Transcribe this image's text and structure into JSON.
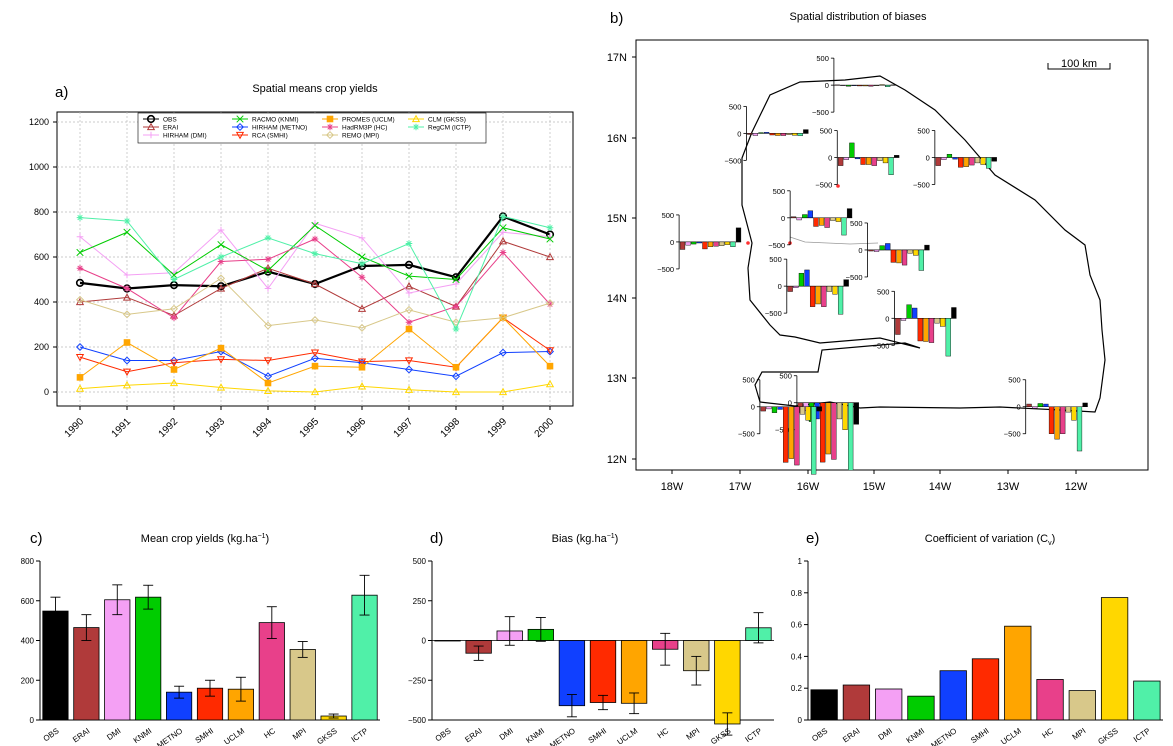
{
  "chart_data": [
    {
      "panel_label": "a)",
      "type": "line",
      "title": "Spatial means crop yields",
      "x": [
        1990,
        1991,
        1992,
        1993,
        1994,
        1995,
        1996,
        1997,
        1998,
        1999,
        2000
      ],
      "ylim": [
        0,
        1200
      ],
      "yticks": [
        0,
        200,
        400,
        600,
        800,
        1000,
        1200
      ],
      "grid": true,
      "legend": "top",
      "series": [
        {
          "name": "OBS",
          "color": "#000000",
          "marker": "o",
          "values": [
            485,
            460,
            475,
            470,
            535,
            480,
            560,
            565,
            510,
            780,
            700
          ]
        },
        {
          "name": "ERAI",
          "color": "#b03a3a",
          "marker": "^",
          "values": [
            400,
            420,
            340,
            460,
            550,
            480,
            370,
            470,
            380,
            670,
            600
          ]
        },
        {
          "name": "HIRHAM (DMI)",
          "color": "#f4a0f4",
          "marker": "+",
          "values": [
            690,
            520,
            530,
            720,
            460,
            750,
            685,
            440,
            480,
            710,
            690
          ]
        },
        {
          "name": "RACMO (KNMI)",
          "color": "#00cc00",
          "marker": "x",
          "values": [
            620,
            710,
            520,
            655,
            540,
            740,
            600,
            515,
            500,
            730,
            680
          ]
        },
        {
          "name": "HIRHAM (METNO)",
          "color": "#1040ff",
          "marker": "d",
          "values": [
            200,
            140,
            140,
            180,
            70,
            150,
            130,
            100,
            70,
            175,
            180
          ]
        },
        {
          "name": "RCA (SMHI)",
          "color": "#ff2a00",
          "marker": "v",
          "values": [
            155,
            90,
            130,
            145,
            140,
            175,
            135,
            140,
            110,
            330,
            185
          ]
        },
        {
          "name": "PROMES (UCLM)",
          "color": "#ffa500",
          "marker": "s",
          "values": [
            65,
            220,
            100,
            195,
            40,
            115,
            110,
            280,
            110,
            330,
            115
          ]
        },
        {
          "name": "HadRM3P (HC)",
          "color": "#e8408a",
          "marker": "*",
          "values": [
            550,
            460,
            330,
            580,
            590,
            680,
            510,
            310,
            380,
            620,
            390
          ]
        },
        {
          "name": "REMO (MPI)",
          "color": "#d8c88a",
          "marker": "d",
          "values": [
            410,
            345,
            370,
            505,
            295,
            320,
            285,
            365,
            310,
            330,
            395
          ]
        },
        {
          "name": "CLM (GKSS)",
          "color": "#ffd700",
          "marker": "^",
          "values": [
            15,
            30,
            40,
            20,
            5,
            0,
            25,
            10,
            0,
            0,
            35
          ]
        },
        {
          "name": "RegCM (ICTP)",
          "color": "#50f0a8",
          "marker": "*",
          "values": [
            775,
            760,
            500,
            600,
            685,
            615,
            570,
            660,
            280,
            780,
            730
          ]
        }
      ]
    },
    {
      "panel_label": "b)",
      "type": "map",
      "title": "Spatial distribution of biases",
      "lat_labels": [
        "17N",
        "16N",
        "15N",
        "14N",
        "13N",
        "12N"
      ],
      "lon_labels": [
        "18W",
        "17W",
        "16W",
        "15W",
        "14W",
        "13W",
        "12W"
      ],
      "scalebar_label": "100 km",
      "inset_ticks": [
        "500",
        "0",
        "−500"
      ],
      "insets": [
        {
          "lon": -15.0,
          "lat": 16.65,
          "values": [
            5,
            -5,
            -20,
            -10,
            -15,
            -15,
            -20,
            -10,
            10,
            -30,
            5
          ]
        },
        {
          "lon": -16.3,
          "lat": 16.05,
          "values": [
            -20,
            -40,
            15,
            20,
            -30,
            -40,
            -40,
            -25,
            -35,
            -45,
            70
          ]
        },
        {
          "lon": -14.95,
          "lat": 15.75,
          "values": [
            -150,
            -40,
            270,
            -25,
            -130,
            -130,
            -150,
            -60,
            -100,
            -320,
            40
          ]
        },
        {
          "lon": -13.5,
          "lat": 15.75,
          "values": [
            -150,
            -40,
            60,
            -30,
            -180,
            -170,
            -140,
            -100,
            -130,
            -200,
            -70
          ]
        },
        {
          "lon": -15.65,
          "lat": 15.0,
          "values": [
            20,
            -40,
            60,
            130,
            -160,
            -140,
            -180,
            -50,
            -70,
            -320,
            170
          ]
        },
        {
          "lon": -17.3,
          "lat": 14.7,
          "values": [
            -140,
            -60,
            -40,
            -20,
            -130,
            -90,
            -80,
            -70,
            -50,
            -90,
            260
          ]
        },
        {
          "lon": -14.5,
          "lat": 14.6,
          "values": [
            -20,
            -30,
            80,
            120,
            -230,
            -240,
            -280,
            -60,
            -100,
            -380,
            90
          ]
        },
        {
          "lon": -15.7,
          "lat": 14.15,
          "values": [
            -100,
            -30,
            240,
            300,
            -380,
            -330,
            -380,
            -100,
            -150,
            -520,
            120
          ]
        },
        {
          "lon": -14.1,
          "lat": 13.75,
          "values": [
            -300,
            -40,
            250,
            190,
            -420,
            -430,
            -450,
            -90,
            -150,
            -700,
            200
          ]
        },
        {
          "lon": -15.55,
          "lat": 12.7,
          "values": [
            -180,
            -150,
            -350,
            -300,
            -1100,
            -950,
            -1050,
            -300,
            -500,
            -1250,
            -400
          ]
        },
        {
          "lon": -16.1,
          "lat": 12.65,
          "values": [
            -80,
            -40,
            -110,
            -50,
            -1030,
            -960,
            -1080,
            -140,
            -250,
            -1250,
            -80
          ]
        },
        {
          "lon": -12.15,
          "lat": 12.65,
          "values": [
            50,
            -30,
            60,
            50,
            -500,
            -600,
            -500,
            -100,
            -250,
            -820,
            70
          ]
        }
      ]
    },
    {
      "panel_label": "c)",
      "type": "bar",
      "title": "Mean crop yields (kg.ha",
      "title_sup": "−1",
      "title_end": ")",
      "categories": [
        "OBS",
        "ERAI",
        "DMI",
        "KNMI",
        "METNO",
        "SMHI",
        "UCLM",
        "HC",
        "MPI",
        "GKSS",
        "ICTP"
      ],
      "values": [
        548,
        465,
        605,
        618,
        140,
        160,
        155,
        490,
        355,
        20,
        628
      ],
      "errors": [
        70,
        65,
        75,
        60,
        30,
        40,
        60,
        80,
        40,
        10,
        100
      ],
      "colors": [
        "#000000",
        "#b03a3a",
        "#f4a0f4",
        "#00cc00",
        "#1040ff",
        "#ff2a00",
        "#ffa500",
        "#e8408a",
        "#d8c88a",
        "#ffd700",
        "#50f0a8"
      ],
      "ylim": [
        0,
        800
      ],
      "yticks": [
        0,
        200,
        400,
        600,
        800
      ]
    },
    {
      "panel_label": "d)",
      "type": "bar",
      "title": "Bias (kg.ha",
      "title_sup": "−1",
      "title_end": ")",
      "categories": [
        "OBS",
        "ERAI",
        "DMI",
        "KNMI",
        "METNO",
        "SMHI",
        "UCLM",
        "HC",
        "MPI",
        "GKSS",
        "ICTP"
      ],
      "values": [
        0,
        -80,
        60,
        70,
        -410,
        -390,
        -395,
        -55,
        -190,
        -525,
        80
      ],
      "errors": [
        0,
        45,
        90,
        75,
        70,
        45,
        65,
        100,
        90,
        70,
        95
      ],
      "colors": [
        "#000000",
        "#b03a3a",
        "#f4a0f4",
        "#00cc00",
        "#1040ff",
        "#ff2a00",
        "#ffa500",
        "#e8408a",
        "#d8c88a",
        "#ffd700",
        "#50f0a8"
      ],
      "ylim": [
        -500,
        500
      ],
      "yticks": [
        -500,
        -250,
        0,
        250,
        500
      ],
      "ytick_labels": [
        "−500",
        "−250",
        "0",
        "250",
        "500"
      ]
    },
    {
      "panel_label": "e)",
      "type": "bar",
      "title": "Coefficient of variation (C",
      "title_sub": "v",
      "title_end": ")",
      "categories": [
        "OBS",
        "ERAI",
        "DMI",
        "KNMI",
        "METNO",
        "SMHI",
        "UCLM",
        "HC",
        "MPI",
        "GKSS",
        "ICTP"
      ],
      "values": [
        0.19,
        0.22,
        0.195,
        0.15,
        0.31,
        0.385,
        0.59,
        0.255,
        0.185,
        0.77,
        0.245
      ],
      "colors": [
        "#000000",
        "#b03a3a",
        "#f4a0f4",
        "#00cc00",
        "#1040ff",
        "#ff2a00",
        "#ffa500",
        "#e8408a",
        "#d8c88a",
        "#ffd700",
        "#50f0a8"
      ],
      "ylim": [
        0,
        1
      ],
      "yticks": [
        0,
        0.2,
        0.4,
        0.6,
        0.8,
        1
      ],
      "ytick_labels": [
        "0",
        "0.2",
        "0.4",
        "0.6",
        "0.8",
        "1"
      ]
    }
  ]
}
